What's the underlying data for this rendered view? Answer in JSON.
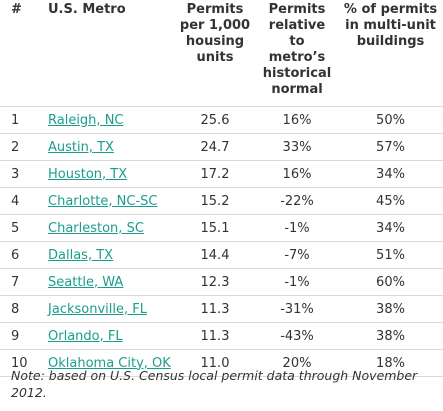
{
  "table": {
    "headers": {
      "rank": "#",
      "metro": "U.S. Metro",
      "permits": "Permits per 1,000 housing units",
      "relative": "Permits relative to metro’s historical normal",
      "multi": "% of permits in multi-unit buildings"
    },
    "rows": [
      {
        "rank": "1",
        "metro": "Raleigh, NC",
        "permits": "25.6",
        "relative": "16%",
        "multi": "50%"
      },
      {
        "rank": "2",
        "metro": "Austin, TX",
        "permits": "24.7",
        "relative": "33%",
        "multi": "57%"
      },
      {
        "rank": "3",
        "metro": "Houston, TX",
        "permits": "17.2",
        "relative": "16%",
        "multi": "34%"
      },
      {
        "rank": "4",
        "metro": "Charlotte, NC-SC",
        "permits": "15.2",
        "relative": "-22%",
        "multi": "45%"
      },
      {
        "rank": "5",
        "metro": "Charleston, SC",
        "permits": "15.1",
        "relative": "-1%",
        "multi": "34%"
      },
      {
        "rank": "6",
        "metro": "Dallas, TX",
        "permits": "14.4",
        "relative": "-7%",
        "multi": "51%"
      },
      {
        "rank": "7",
        "metro": "Seattle, WA",
        "permits": "12.3",
        "relative": "-1%",
        "multi": "60%"
      },
      {
        "rank": "8",
        "metro": "Jacksonville, FL",
        "permits": "11.3",
        "relative": "-31%",
        "multi": "38%"
      },
      {
        "rank": "9",
        "metro": "Orlando, FL",
        "permits": "11.3",
        "relative": "-43%",
        "multi": "38%"
      },
      {
        "rank": "10",
        "metro": "Oklahoma City, OK",
        "permits": "11.0",
        "relative": "20%",
        "multi": "18%"
      }
    ]
  },
  "note": "Note: based on U.S. Census local permit data through November 2012.",
  "colors": {
    "link": "#1a9e8c",
    "text": "#333333",
    "rule": "#d9d9d9"
  }
}
